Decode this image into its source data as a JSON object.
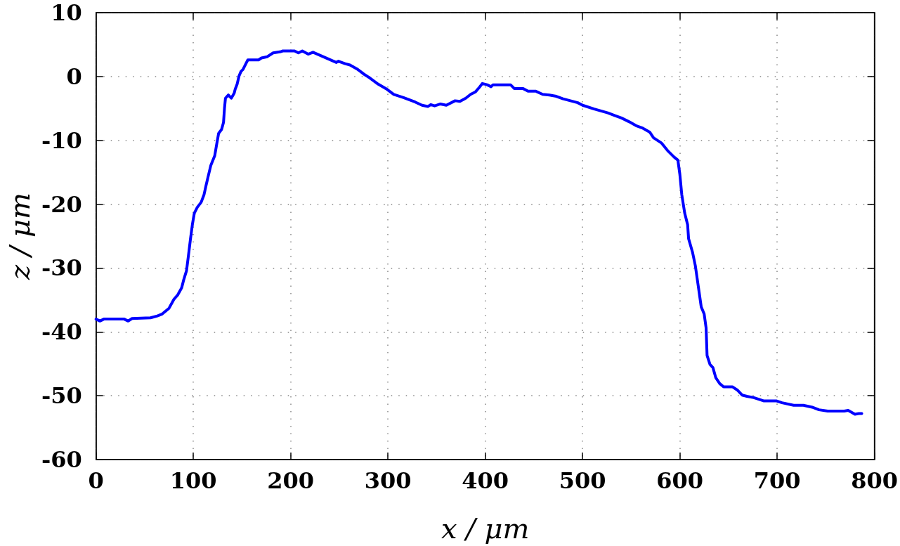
{
  "chart_data": {
    "type": "line",
    "xlabel": "x / μm",
    "ylabel": "z / μm",
    "xlim": [
      0,
      800
    ],
    "xticks": [
      0,
      100,
      200,
      300,
      400,
      500,
      600,
      700,
      800
    ],
    "ylim": [
      -60,
      10
    ],
    "yticks": [
      -60,
      -50,
      -40,
      -30,
      -20,
      -10,
      0,
      10
    ],
    "grid": true,
    "line_style": "solid",
    "x": [
      0,
      4,
      8,
      29,
      33,
      37,
      56,
      63,
      68,
      75,
      80,
      84,
      88,
      90,
      93,
      95,
      97,
      99,
      101,
      104,
      108,
      111,
      113,
      115,
      118,
      122,
      124,
      126,
      129,
      131,
      132,
      133,
      136,
      139,
      142,
      143,
      145,
      147,
      149,
      151,
      154,
      156,
      167,
      170,
      176,
      182,
      190,
      192,
      204,
      208,
      212,
      218,
      223,
      235,
      247,
      249,
      256,
      261,
      268,
      275,
      281,
      290,
      299,
      306,
      316,
      328,
      335,
      341,
      344,
      348,
      354,
      360,
      369,
      374,
      380,
      385,
      390,
      394,
      397,
      402,
      406,
      408,
      422,
      426,
      430,
      439,
      444,
      452,
      459,
      466,
      473,
      480,
      495,
      500,
      512,
      526,
      533,
      540,
      548,
      555,
      562,
      569,
      573,
      581,
      588,
      594,
      598,
      600,
      602,
      605,
      608,
      609,
      613,
      616,
      619,
      622,
      625,
      627,
      628,
      631,
      634,
      637,
      641,
      645,
      654,
      659,
      664,
      669,
      676,
      686,
      699,
      705,
      717,
      727,
      736,
      743,
      752,
      769,
      773,
      780,
      784,
      787
    ],
    "series": [
      {
        "color": "#0000ff",
        "values": [
          -38.0,
          -38.3,
          -38.0,
          -38.0,
          -38.3,
          -37.9,
          -37.8,
          -37.5,
          -37.2,
          -36.3,
          -34.9,
          -34.2,
          -33.1,
          -31.9,
          -30.4,
          -28.0,
          -25.5,
          -23.2,
          -21.4,
          -20.5,
          -19.7,
          -18.5,
          -17.1,
          -15.8,
          -13.9,
          -12.4,
          -10.6,
          -8.9,
          -8.3,
          -7.2,
          -5.0,
          -3.4,
          -2.9,
          -3.4,
          -2.6,
          -2.0,
          -1.2,
          0.1,
          0.8,
          1.1,
          2.0,
          2.6,
          2.6,
          2.9,
          3.1,
          3.7,
          3.9,
          4.0,
          4.0,
          3.7,
          4.0,
          3.5,
          3.8,
          3.0,
          2.2,
          2.4,
          2.0,
          1.8,
          1.2,
          0.4,
          -0.2,
          -1.2,
          -2.0,
          -2.8,
          -3.3,
          -4.0,
          -4.5,
          -4.7,
          -4.4,
          -4.6,
          -4.3,
          -4.5,
          -3.8,
          -3.9,
          -3.4,
          -2.8,
          -2.4,
          -1.7,
          -1.1,
          -1.3,
          -1.6,
          -1.3,
          -1.3,
          -1.3,
          -1.9,
          -1.9,
          -2.3,
          -2.3,
          -2.8,
          -2.9,
          -3.1,
          -3.5,
          -4.1,
          -4.5,
          -5.1,
          -5.7,
          -6.1,
          -6.5,
          -7.1,
          -7.7,
          -8.1,
          -8.7,
          -9.6,
          -10.4,
          -11.7,
          -12.6,
          -13.1,
          -15.3,
          -18.5,
          -21.4,
          -23.2,
          -25.4,
          -27.5,
          -29.7,
          -32.9,
          -36.1,
          -37.2,
          -39.4,
          -43.7,
          -45.1,
          -45.6,
          -47.2,
          -48.1,
          -48.6,
          -48.6,
          -49.1,
          -49.9,
          -50.1,
          -50.3,
          -50.8,
          -50.8,
          -51.1,
          -51.5,
          -51.5,
          -51.8,
          -52.2,
          -52.4,
          -52.4,
          -52.3,
          -52.9,
          -52.8,
          -52.8
        ]
      }
    ]
  }
}
